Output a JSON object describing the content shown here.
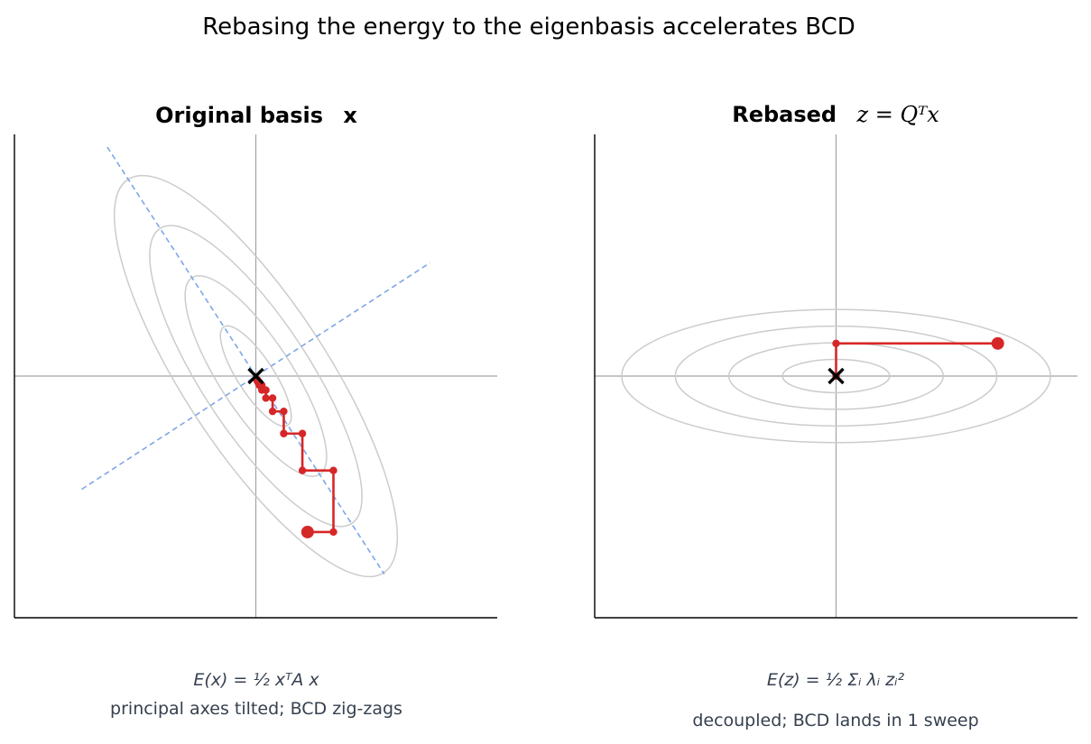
{
  "figure": {
    "title": "Rebasing the energy to the eigenbasis accelerates BCD"
  },
  "panels": [
    {
      "title_bold": "Original basis",
      "title_math": "x",
      "formula": "E(x) = ½ xᵀA x",
      "caption": "principal axes tilted; BCD zig-zags"
    },
    {
      "title_bold": "Rebased",
      "title_math": "z = Qᵀx",
      "formula": "E(z) = ½ Σᵢ λᵢ zᵢ²",
      "caption": "decoupled; BCD lands in 1 sweep"
    }
  ],
  "colors": {
    "contour": "#cccccc",
    "eigen_axis": "#7fa6e6",
    "path": "#d62728",
    "reference_axis": "#a0a4ad",
    "minimum_marker": "#000000",
    "caption_text": "#36404f"
  },
  "chart_data": [
    {
      "type": "line",
      "panel": "original",
      "xlim": [
        -1.0,
        1.0
      ],
      "ylim": [
        -1.0,
        1.0
      ],
      "contour_levels": [
        0.0225,
        0.09,
        0.2025,
        0.36
      ],
      "tilt_deg": -57,
      "minimum": [
        0,
        0
      ],
      "bcd_path": [
        [
          0.2143,
          -0.6454
        ],
        [
          0.3215,
          -0.6454
        ],
        [
          0.3215,
          -0.3907
        ],
        [
          0.1929,
          -0.3907
        ],
        [
          0.1929,
          -0.2379
        ],
        [
          0.1157,
          -0.2379
        ],
        [
          0.1157,
          -0.1462
        ],
        [
          0.0694,
          -0.1462
        ],
        [
          0.0694,
          -0.0911
        ],
        [
          0.0416,
          -0.0911
        ],
        [
          0.0416,
          -0.0581
        ],
        [
          0.025,
          -0.0581
        ],
        [
          0.025,
          -0.0383
        ],
        [
          0.015,
          -0.0383
        ],
        [
          0.015,
          -0.0264
        ],
        [
          0.009,
          -0.0264
        ],
        [
          0.009,
          -0.0193
        ],
        [
          0.0054,
          -0.0193
        ],
        [
          0.0054,
          -0.015
        ]
      ]
    },
    {
      "type": "line",
      "panel": "rebased",
      "xlim": [
        -1.0,
        1.0
      ],
      "ylim": [
        -1.0,
        1.0
      ],
      "contour_levels": [
        0.0225,
        0.09,
        0.2025,
        0.36
      ],
      "minimum": [
        0,
        0
      ],
      "bcd_path": [
        [
          0.67,
          0.135
        ],
        [
          0.0,
          0.135
        ],
        [
          0.0,
          0.0
        ]
      ]
    }
  ]
}
